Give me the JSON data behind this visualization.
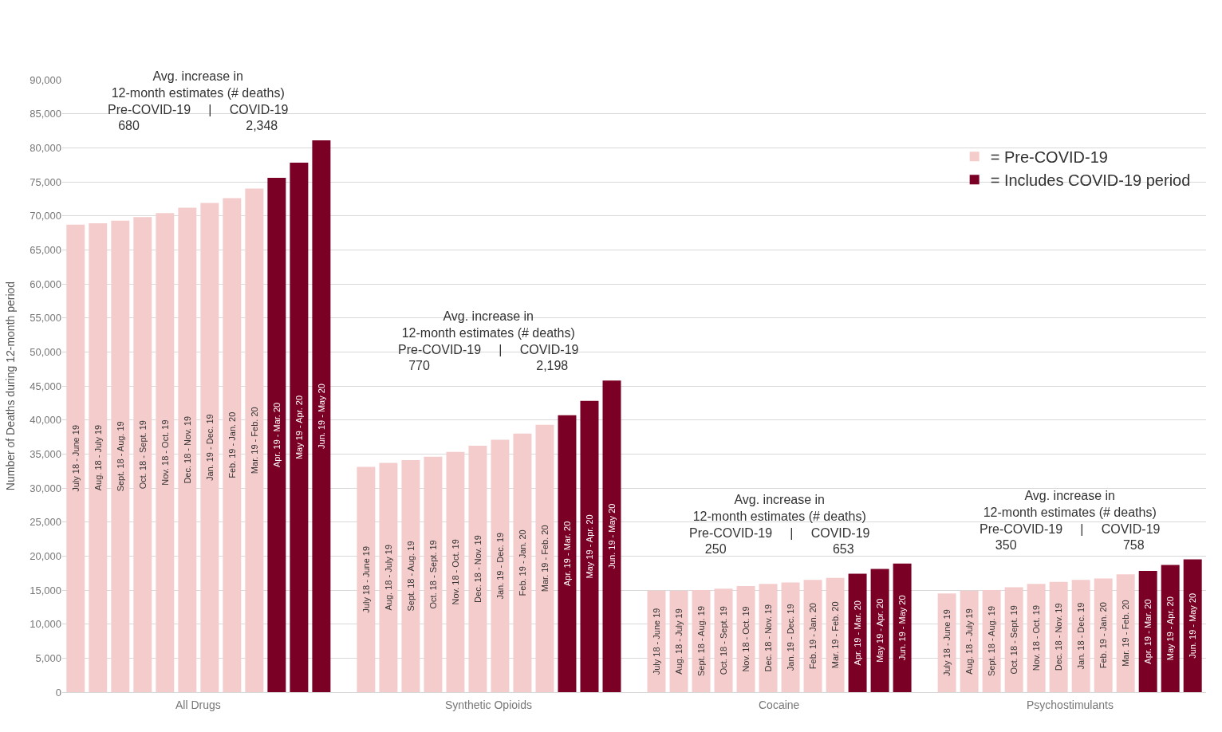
{
  "chart_data": {
    "type": "bar",
    "ylabel": "Number of Deaths during 12-month period",
    "categories": [
      "July 18 - June 19",
      "Aug. 18 - July 19",
      "Sept. 18 - Aug. 19",
      "Oct. 18 - Sept. 19",
      "Nov. 18 - Oct. 19",
      "Dec. 18 - Nov. 19",
      "Jan. 19 - Dec. 19",
      "Feb. 19 - Jan. 20",
      "Mar. 19 - Feb. 20",
      "Apr. 19 - Mar. 20",
      "May 19 - Apr. 20",
      "Jun. 19 - May 20",
      null,
      "July 18 - June 19",
      "Aug. 18 - July 19",
      "Sept. 18 - Aug. 19",
      "Oct. 18 - Sept. 19",
      "Nov. 18 - Oct. 19",
      "Dec. 18 - Nov. 19",
      "Jan. 19 - Dec. 19",
      "Feb. 19 - Jan. 20",
      "Mar. 19 - Feb. 20",
      "Apr. 19 - Mar. 20",
      "May 19 - Apr. 20",
      "Jun. 19 - May 20",
      null,
      "July 18 - June 19",
      "Aug. 18 - July 19",
      "Sept. 18 - Aug. 19",
      "Oct. 18 - Sept. 19",
      "Nov. 18 - Oct. 19",
      "Dec. 18 - Nov. 19",
      "Jan. 19 - Dec. 19",
      "Feb. 19 - Jan. 20",
      "Mar. 19 - Feb. 20",
      "Apr. 19 - Mar. 20",
      "May 19 - Apr. 20",
      "Jun. 19 - May 20",
      null,
      "July 18 - June 19",
      "Aug. 18 - July 19",
      "Sept. 18 - Aug. 19",
      "Oct. 18 - Sept. 19",
      "Nov. 18 - Oct. 19",
      "Dec. 18 - Nov. 19",
      "Jan. 18 - Dec. 19",
      "Feb. 19 - Jan. 20",
      "Mar. 19 - Feb. 20",
      "Apr. 19 - Mar. 20",
      "May 19 - Apr. 20",
      "Jun. 19 - May 20"
    ],
    "series": [
      {
        "name": "= Pre-COVID-19",
        "color": "#f4cccc",
        "values": [
          68700,
          68900,
          69300,
          69800,
          70400,
          71200,
          71900,
          72600,
          74000,
          null,
          null,
          null,
          null,
          33100,
          33700,
          34100,
          34600,
          35300,
          36200,
          37100,
          38000,
          39300,
          null,
          null,
          null,
          null,
          14900,
          14900,
          15000,
          15200,
          15600,
          15900,
          16100,
          16500,
          16800,
          null,
          null,
          null,
          null,
          14500,
          14900,
          15000,
          15400,
          15900,
          16200,
          16500,
          16700,
          17300,
          null,
          null,
          null
        ]
      },
      {
        "name": "= Includes COVID-19 period",
        "color": "#7b0025",
        "values": [
          null,
          null,
          null,
          null,
          null,
          null,
          null,
          null,
          null,
          75600,
          77800,
          81100,
          null,
          null,
          null,
          null,
          null,
          null,
          null,
          null,
          null,
          null,
          40700,
          42800,
          45800,
          null,
          null,
          null,
          null,
          null,
          null,
          null,
          null,
          null,
          null,
          17400,
          18100,
          18900,
          null,
          null,
          null,
          null,
          null,
          null,
          null,
          null,
          null,
          null,
          17800,
          18700,
          19500
        ]
      }
    ],
    "ylim": [
      0,
      90000
    ],
    "yticks": [
      0,
      {
        "value": 5000,
        "label": "5,000"
      },
      {
        "value": 10000,
        "label": "10,000"
      },
      {
        "value": 15000,
        "label": "15,000"
      },
      {
        "value": 20000,
        "label": "20,000"
      },
      {
        "value": 25000,
        "label": "25,000"
      },
      {
        "value": 30000,
        "label": "30,000"
      },
      {
        "value": 35000,
        "label": "35,000"
      },
      {
        "value": 40000,
        "label": "40,000"
      },
      {
        "value": 45000,
        "label": "45,000"
      },
      {
        "value": 50000,
        "label": "50,000"
      },
      {
        "value": 55000,
        "label": "55,000"
      },
      {
        "value": 60000,
        "label": "60,000"
      },
      {
        "value": 65000,
        "label": "65,000"
      },
      {
        "value": 70000,
        "label": "70,000"
      },
      {
        "value": 75000,
        "label": "75,000"
      },
      {
        "value": 80000,
        "label": "80,000"
      },
      {
        "value": 85000,
        "label": "85,000"
      },
      {
        "value": 90000,
        "label": "90,000"
      }
    ],
    "grid": "y",
    "legend": "top right",
    "annotations": [
      "All Drugs",
      "Synthetic Opioids",
      "Cocaine",
      "Psychostimulants",
      "Avg. increase in\n12-month estimates (# deaths)\nPre-COVID-19     |     COVID-19\n680                              2,348",
      "Avg. increase in\n12-month estimates (# deaths)\nPre-COVID-19     |     COVID-19\n770                              2,198",
      "Avg. increase in\n12-month estimates (# deaths)\nPre-COVID-19     |     COVID-19\n250                              653",
      "Avg. increase in\n12-month estimates (# deaths)\nPre-COVID-19     |     COVID-19\n350                              758"
    ]
  }
}
